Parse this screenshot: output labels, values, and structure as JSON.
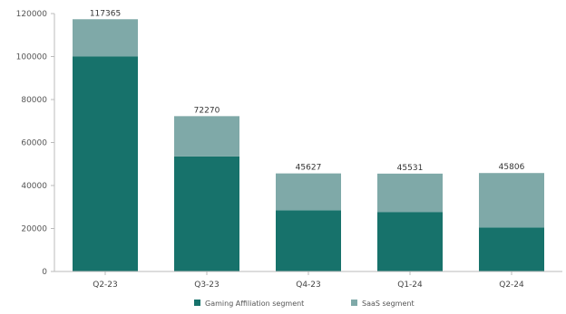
{
  "chart_data": {
    "type": "bar",
    "stacked": true,
    "categories": [
      "Q2-23",
      "Q3-23",
      "Q4-23",
      "Q1-24",
      "Q2-24"
    ],
    "series": [
      {
        "name": "Gaming Affiliation segment",
        "values": [
          100000,
          53500,
          28500,
          27700,
          20500
        ],
        "color": "#17726b"
      },
      {
        "name": "SaaS segment",
        "values": [
          17365,
          18770,
          17127,
          17831,
          25306
        ],
        "color": "#7fa9a8"
      }
    ],
    "totals": [
      117365,
      72270,
      45627,
      45531,
      45806
    ],
    "total_labels": [
      "117365",
      "72270",
      "45627",
      "45531",
      "45806"
    ],
    "ylim": [
      0,
      120000
    ],
    "yticks": [
      0,
      20000,
      40000,
      60000,
      80000,
      100000,
      120000
    ],
    "ytick_labels": [
      "0",
      "20000",
      "40000",
      "60000",
      "80000",
      "100000",
      "120000"
    ],
    "grid": false,
    "legend_position": "bottom-center"
  }
}
